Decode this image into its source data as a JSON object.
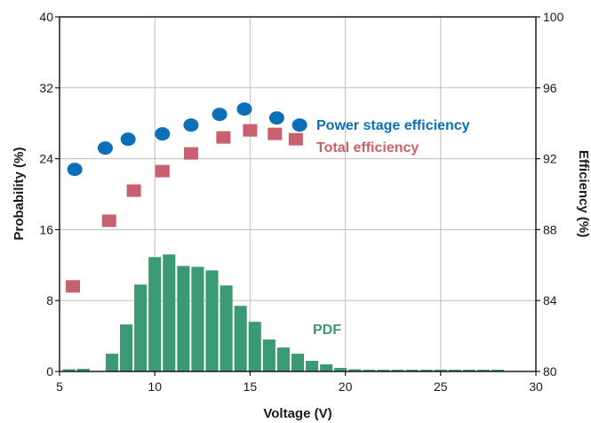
{
  "chart_data": {
    "type": "bar",
    "title": "",
    "xlabel": "Voltage (V)",
    "ylabel_left": "Probability (%)",
    "ylabel_right": "Efficiency (%)",
    "xlim": [
      5,
      30
    ],
    "ylim_left": [
      0,
      40
    ],
    "ylim_right": [
      80,
      100
    ],
    "x_ticks": [
      "5",
      "10",
      "15",
      "20",
      "25",
      "30"
    ],
    "y_left_ticks": [
      "0",
      "8",
      "16",
      "24",
      "32",
      "40"
    ],
    "y_right_ticks": [
      "80",
      "84",
      "88",
      "92",
      "96",
      "100"
    ],
    "grid": true,
    "colors": {
      "pdf": "#3a9a74",
      "power_stage": "#0a6fb7",
      "total": "#c96070",
      "grid": "#bdbdbd"
    },
    "series": [
      {
        "name": "PDF",
        "type": "bar",
        "axis": "left",
        "x": [
          5.5,
          6.25,
          7.75,
          8.5,
          9.25,
          10.0,
          10.75,
          11.5,
          12.25,
          13.0,
          13.75,
          14.5,
          15.25,
          16.0,
          16.75,
          17.5,
          18.25,
          19.0,
          19.75,
          20.5,
          21.25,
          22.0,
          22.75,
          23.5,
          24.25,
          25.0,
          25.75,
          26.5,
          27.25,
          28.0
        ],
        "values": [
          0.25,
          0.3,
          2.0,
          5.3,
          9.8,
          12.9,
          13.2,
          11.9,
          11.8,
          11.4,
          9.7,
          7.4,
          5.6,
          3.6,
          2.7,
          2.0,
          1.2,
          0.8,
          0.4,
          0.25,
          0.2,
          0.2,
          0.2,
          0.2,
          0.2,
          0.2,
          0.2,
          0.2,
          0.2,
          0.2
        ]
      },
      {
        "name": "Power stage efficiency",
        "type": "scatter",
        "axis": "right",
        "marker": "circle",
        "x": [
          5.8,
          7.4,
          8.6,
          10.4,
          11.9,
          13.4,
          14.7,
          16.4,
          17.6
        ],
        "values": [
          91.4,
          92.6,
          93.1,
          93.4,
          93.9,
          94.5,
          94.8,
          94.3,
          93.9
        ]
      },
      {
        "name": "Total efficiency",
        "type": "scatter",
        "axis": "right",
        "marker": "square",
        "x": [
          5.7,
          7.6,
          8.9,
          10.4,
          11.9,
          13.6,
          15.0,
          16.3,
          17.4
        ],
        "values": [
          84.8,
          88.5,
          90.2,
          91.3,
          92.3,
          93.2,
          93.6,
          93.4,
          93.1
        ]
      }
    ]
  }
}
